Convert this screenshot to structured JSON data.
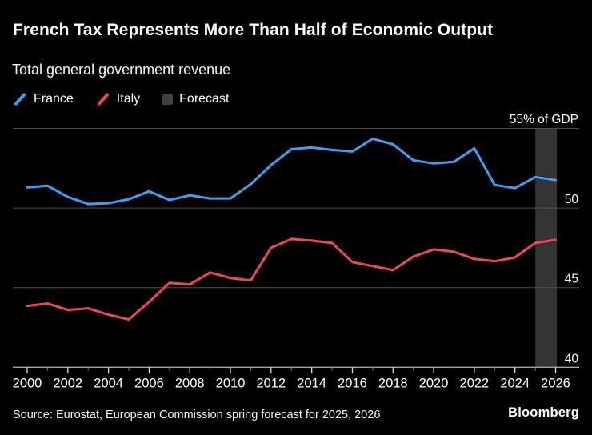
{
  "header": {
    "title": "French Tax Represents More Than Half of Economic Output",
    "subtitle": "Total general government revenue"
  },
  "legend": [
    {
      "label": "France",
      "swatch": "line-slash",
      "color": "#3BA1F2"
    },
    {
      "label": "Italy",
      "swatch": "line-slash",
      "color": "#F0455A"
    },
    {
      "label": "Forecast",
      "swatch": "square",
      "color": "#414141"
    }
  ],
  "footer": {
    "source": "Source: Eurostat, European Commission spring forecast for 2025, 2026",
    "brand": "Bloomberg"
  },
  "chart_data": {
    "type": "line",
    "title": "French Tax Represents More Than Half of Economic Output",
    "subtitle": "Total general government revenue",
    "unit_label": "55% of GDP",
    "x": [
      2000,
      2001,
      2002,
      2003,
      2004,
      2005,
      2006,
      2007,
      2008,
      2009,
      2010,
      2011,
      2012,
      2013,
      2014,
      2015,
      2016,
      2017,
      2018,
      2019,
      2020,
      2021,
      2022,
      2023,
      2024,
      2025,
      2026
    ],
    "series": [
      {
        "name": "France",
        "color": "#3BA1F2",
        "values": [
          51.3,
          51.4,
          50.7,
          50.25,
          50.3,
          50.55,
          51.05,
          50.5,
          50.8,
          50.6,
          50.6,
          51.5,
          52.7,
          53.7,
          53.8,
          53.65,
          53.55,
          54.35,
          54.0,
          53.0,
          52.8,
          52.9,
          53.75,
          51.45,
          51.25,
          51.95,
          51.75
        ]
      },
      {
        "name": "Italy",
        "color": "#F0455A",
        "values": [
          43.85,
          44.0,
          43.6,
          43.7,
          43.3,
          43.0,
          44.1,
          45.3,
          45.2,
          45.95,
          45.6,
          45.45,
          47.5,
          48.05,
          47.95,
          47.8,
          46.6,
          46.35,
          46.1,
          46.95,
          47.4,
          47.25,
          46.8,
          46.65,
          46.9,
          47.8,
          48.0
        ]
      }
    ],
    "forecast": {
      "label": "Forecast",
      "x_start": 2025,
      "x_end": 2026,
      "color": "#343434"
    },
    "ylim": [
      40,
      55
    ],
    "yticks": [
      40,
      45,
      50
    ],
    "grid_values": [
      45,
      50,
      55
    ],
    "xticks": [
      2000,
      2002,
      2004,
      2006,
      2008,
      2010,
      2012,
      2014,
      2016,
      2018,
      2020,
      2022,
      2024,
      2026
    ],
    "grid": "horizontal",
    "legend_position": "top-left",
    "colors": {
      "background": "#000000",
      "gridline": "#4F4F4F",
      "axis": "#A3A3A3",
      "text": "#FFFFFF"
    }
  }
}
